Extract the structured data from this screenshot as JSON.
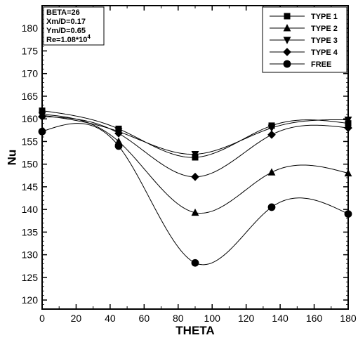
{
  "chart_data": {
    "type": "line",
    "xlabel": "THETA",
    "ylabel": "Nu",
    "xlim": [
      0,
      180
    ],
    "ylim": [
      118,
      185
    ],
    "x_ticks": [
      0,
      20,
      40,
      60,
      80,
      100,
      120,
      140,
      160,
      180
    ],
    "y_ticks": [
      120,
      125,
      130,
      135,
      140,
      145,
      150,
      155,
      160,
      165,
      170,
      175,
      180
    ],
    "legend_placement": "top-right",
    "grid": false,
    "annotation": {
      "lines": [
        "BETA=26",
        "Xm/D=0.17",
        "Ym/D=0.65"
      ],
      "re_prefix": "Re=1.08*10",
      "re_exponent": "4"
    },
    "series": [
      {
        "name": "TYPE 1",
        "marker": "square",
        "x": [
          0,
          45,
          90,
          135,
          180
        ],
        "y": [
          161.8,
          157.8,
          151.5,
          158.5,
          159.0
        ]
      },
      {
        "name": "TYPE 2",
        "marker": "triangle-up",
        "x": [
          0,
          45,
          90,
          135,
          180
        ],
        "y": [
          161.0,
          155.0,
          139.3,
          148.2,
          148.0
        ]
      },
      {
        "name": "TYPE 3",
        "marker": "triangle-down",
        "x": [
          0,
          45,
          90,
          135,
          180
        ],
        "y": [
          160.8,
          157.2,
          152.2,
          158.0,
          159.8
        ]
      },
      {
        "name": "TYPE 4",
        "marker": "diamond",
        "x": [
          0,
          45,
          90,
          135,
          180
        ],
        "y": [
          160.5,
          156.8,
          147.2,
          156.5,
          158.0
        ]
      },
      {
        "name": "FREE",
        "marker": "circle",
        "x": [
          0,
          45,
          90,
          135,
          180
        ],
        "y": [
          157.2,
          154.0,
          128.2,
          140.5,
          139.0
        ]
      }
    ]
  }
}
